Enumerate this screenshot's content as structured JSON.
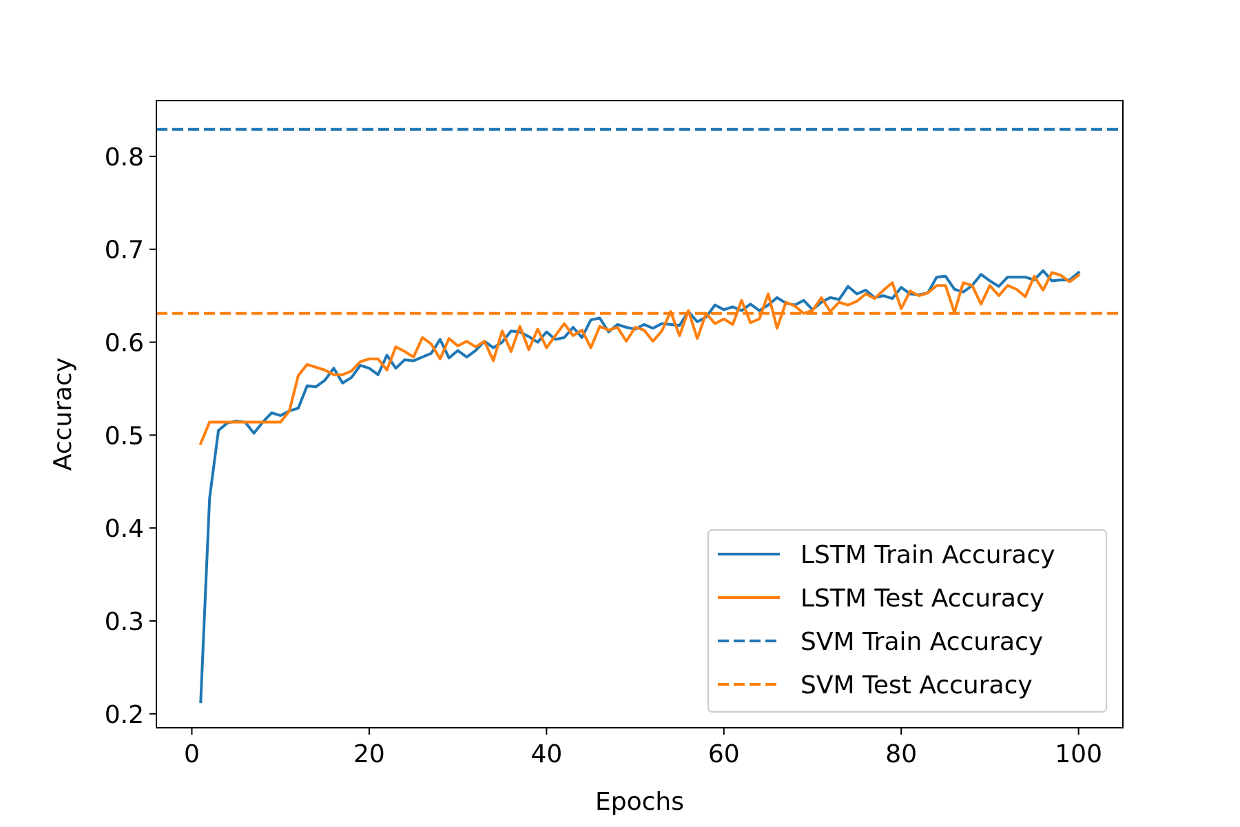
{
  "chart_data": {
    "type": "line",
    "title": "",
    "xlabel": "Epochs",
    "ylabel": "Accuracy",
    "xlim": [
      -4,
      105
    ],
    "ylim": [
      0.185,
      0.86
    ],
    "xticks": [
      0,
      20,
      40,
      60,
      80,
      100
    ],
    "xtick_labels": [
      "0",
      "20",
      "40",
      "60",
      "80",
      "100"
    ],
    "yticks": [
      0.2,
      0.3,
      0.4,
      0.5,
      0.6,
      0.7,
      0.8
    ],
    "ytick_labels": [
      "0.2",
      "0.3",
      "0.4",
      "0.5",
      "0.6",
      "0.7",
      "0.8"
    ],
    "grid": false,
    "legend_position": "bottom-right",
    "colors": {
      "blue": "#1f77b4",
      "orange": "#ff7f0e"
    },
    "series": [
      {
        "name": "LSTM Train Accuracy",
        "style": "solid",
        "color": "#1f77b4",
        "x": [
          1,
          2,
          3,
          4,
          5,
          6,
          7,
          8,
          9,
          10,
          11,
          12,
          13,
          14,
          15,
          16,
          17,
          18,
          19,
          20,
          21,
          22,
          23,
          24,
          25,
          26,
          27,
          28,
          29,
          30,
          31,
          32,
          33,
          34,
          35,
          36,
          37,
          38,
          39,
          40,
          41,
          42,
          43,
          44,
          45,
          46,
          47,
          48,
          49,
          50,
          51,
          52,
          53,
          54,
          55,
          56,
          57,
          58,
          59,
          60,
          61,
          62,
          63,
          64,
          65,
          66,
          67,
          68,
          69,
          70,
          71,
          72,
          73,
          74,
          75,
          76,
          77,
          78,
          79,
          80,
          81,
          82,
          83,
          84,
          85,
          86,
          87,
          88,
          89,
          90,
          91,
          92,
          93,
          94,
          95,
          96,
          97,
          98,
          99,
          100
        ],
        "values": [
          0.213,
          0.432,
          0.505,
          0.513,
          0.515,
          0.514,
          0.502,
          0.514,
          0.524,
          0.521,
          0.526,
          0.529,
          0.553,
          0.552,
          0.559,
          0.572,
          0.556,
          0.562,
          0.575,
          0.572,
          0.565,
          0.586,
          0.572,
          0.581,
          0.58,
          0.584,
          0.588,
          0.603,
          0.583,
          0.591,
          0.584,
          0.591,
          0.601,
          0.594,
          0.6,
          0.612,
          0.611,
          0.606,
          0.6,
          0.611,
          0.603,
          0.605,
          0.616,
          0.605,
          0.624,
          0.626,
          0.611,
          0.619,
          0.616,
          0.614,
          0.619,
          0.615,
          0.62,
          0.619,
          0.618,
          0.633,
          0.622,
          0.627,
          0.64,
          0.635,
          0.638,
          0.634,
          0.641,
          0.634,
          0.64,
          0.648,
          0.642,
          0.64,
          0.645,
          0.635,
          0.643,
          0.648,
          0.646,
          0.66,
          0.652,
          0.656,
          0.648,
          0.65,
          0.647,
          0.659,
          0.652,
          0.651,
          0.653,
          0.67,
          0.671,
          0.657,
          0.654,
          0.661,
          0.673,
          0.666,
          0.66,
          0.67,
          0.67,
          0.67,
          0.667,
          0.677,
          0.666,
          0.667,
          0.667,
          0.675
        ]
      },
      {
        "name": "LSTM Test Accuracy",
        "style": "solid",
        "color": "#ff7f0e",
        "x": [
          1,
          2,
          3,
          4,
          5,
          6,
          7,
          8,
          9,
          10,
          11,
          12,
          13,
          14,
          15,
          16,
          17,
          18,
          19,
          20,
          21,
          22,
          23,
          24,
          25,
          26,
          27,
          28,
          29,
          30,
          31,
          32,
          33,
          34,
          35,
          36,
          37,
          38,
          39,
          40,
          41,
          42,
          43,
          44,
          45,
          46,
          47,
          48,
          49,
          50,
          51,
          52,
          53,
          54,
          55,
          56,
          57,
          58,
          59,
          60,
          61,
          62,
          63,
          64,
          65,
          66,
          67,
          68,
          69,
          70,
          71,
          72,
          73,
          74,
          75,
          76,
          77,
          78,
          79,
          80,
          81,
          82,
          83,
          84,
          85,
          86,
          87,
          88,
          89,
          90,
          91,
          92,
          93,
          94,
          95,
          96,
          97,
          98,
          99,
          100
        ],
        "values": [
          0.491,
          0.514,
          0.514,
          0.514,
          0.514,
          0.514,
          0.514,
          0.514,
          0.514,
          0.514,
          0.526,
          0.564,
          0.576,
          0.573,
          0.57,
          0.565,
          0.565,
          0.569,
          0.579,
          0.582,
          0.582,
          0.57,
          0.595,
          0.59,
          0.584,
          0.605,
          0.598,
          0.582,
          0.604,
          0.596,
          0.601,
          0.595,
          0.601,
          0.58,
          0.612,
          0.59,
          0.617,
          0.592,
          0.614,
          0.594,
          0.607,
          0.62,
          0.607,
          0.613,
          0.594,
          0.617,
          0.613,
          0.616,
          0.601,
          0.616,
          0.613,
          0.601,
          0.612,
          0.633,
          0.607,
          0.634,
          0.604,
          0.631,
          0.62,
          0.625,
          0.619,
          0.645,
          0.621,
          0.625,
          0.652,
          0.615,
          0.643,
          0.639,
          0.631,
          0.634,
          0.648,
          0.633,
          0.643,
          0.64,
          0.644,
          0.652,
          0.647,
          0.656,
          0.664,
          0.636,
          0.655,
          0.65,
          0.653,
          0.661,
          0.661,
          0.632,
          0.664,
          0.661,
          0.641,
          0.661,
          0.65,
          0.661,
          0.657,
          0.649,
          0.671,
          0.656,
          0.675,
          0.672,
          0.665,
          0.672
        ]
      },
      {
        "name": "SVM Train Accuracy",
        "style": "dashed",
        "color": "#1f77b4",
        "constant": 0.829
      },
      {
        "name": "SVM Test Accuracy",
        "style": "dashed",
        "color": "#ff7f0e",
        "constant": 0.631
      }
    ]
  }
}
